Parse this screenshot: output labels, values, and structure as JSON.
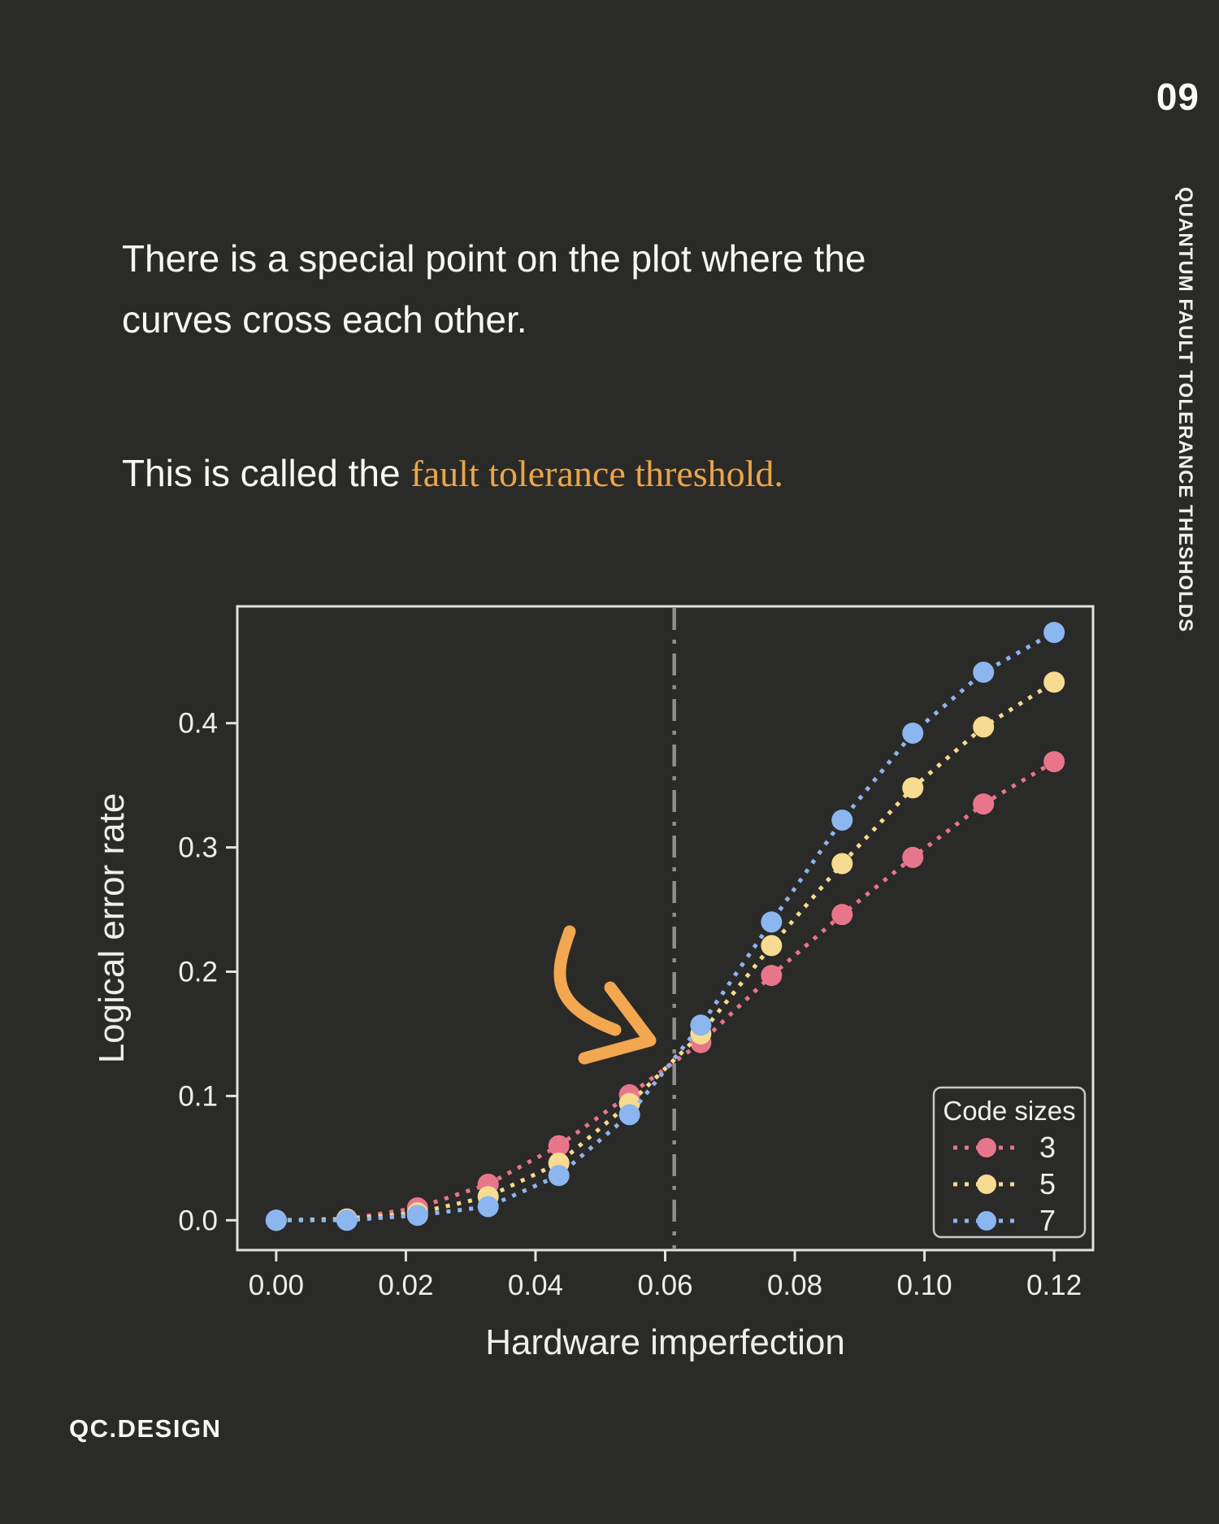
{
  "page": {
    "page_number": "09",
    "sidebar_title": "QUANTUM FAULT TOLERANCE THESHOLDS",
    "footer_brand": "QC.DESIGN",
    "paragraph1_lines": [
      "There is a special point on the plot where the",
      "curves cross each other."
    ],
    "paragraph2_prefix": "This is called the ",
    "paragraph2_highlight": "fault tolerance threshold.",
    "colors": {
      "background": "#2a2a28",
      "body_text": "#f7f7f4",
      "highlight_text": "#eba549",
      "arrow": "#f2a750",
      "axis": "#e2e2e0",
      "tick_text": "#eeeeec",
      "threshold_line": "#8e8e8e",
      "legend_border": "#c9c9c7"
    }
  },
  "chart_data": {
    "type": "line",
    "title": "",
    "xlabel": "Hardware imperfection",
    "ylabel": "Logical error rate",
    "line_style": "dotted",
    "marker": "circle",
    "grid": false,
    "x": [
      0.0,
      0.0109,
      0.0218,
      0.0327,
      0.0436,
      0.0545,
      0.0655,
      0.0764,
      0.0873,
      0.0982,
      0.1091,
      0.12
    ],
    "series": [
      {
        "name": "3",
        "color": "#e8768b",
        "values": [
          0.0,
          0.001,
          0.01,
          0.029,
          0.06,
          0.101,
          0.143,
          0.197,
          0.246,
          0.292,
          0.335,
          0.369
        ]
      },
      {
        "name": "5",
        "color": "#f6db90",
        "values": [
          0.0,
          0.001,
          0.006,
          0.019,
          0.046,
          0.094,
          0.15,
          0.221,
          0.287,
          0.348,
          0.397,
          0.433
        ]
      },
      {
        "name": "7",
        "color": "#8cb6f0",
        "values": [
          0.0,
          0.0,
          0.004,
          0.011,
          0.036,
          0.085,
          0.157,
          0.24,
          0.322,
          0.392,
          0.441,
          0.473
        ]
      }
    ],
    "x_ticks": [
      0.0,
      0.02,
      0.04,
      0.06,
      0.08,
      0.1,
      0.12
    ],
    "x_tick_labels": [
      "0.00",
      "0.02",
      "0.04",
      "0.06",
      "0.08",
      "0.10",
      "0.12"
    ],
    "y_ticks": [
      0.0,
      0.1,
      0.2,
      0.3,
      0.4
    ],
    "y_tick_labels": [
      "0.0",
      "0.1",
      "0.2",
      "0.3",
      "0.4"
    ],
    "xlim": [
      -0.006,
      0.126
    ],
    "ylim": [
      -0.024,
      0.494
    ],
    "threshold_x": 0.0614,
    "threshold_line_style": "dashdot",
    "legend": {
      "title": "Code sizes",
      "position": "lower right",
      "entries": [
        "3",
        "5",
        "7"
      ]
    }
  }
}
